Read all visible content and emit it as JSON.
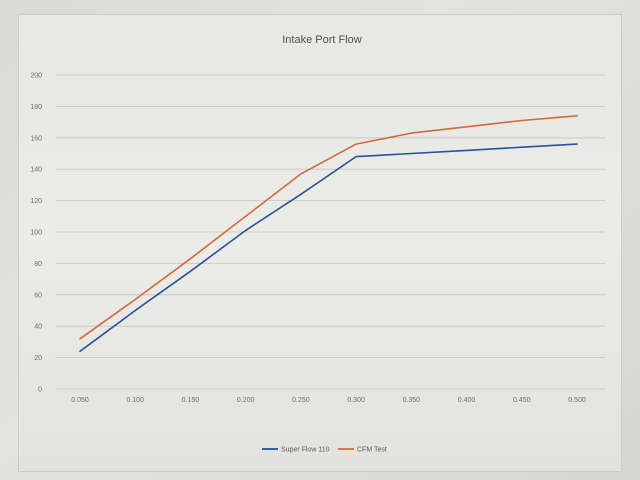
{
  "chart_data": {
    "type": "line",
    "title": "Intake Port Flow",
    "xlabel": "",
    "ylabel": "",
    "x": [
      "0.050",
      "0.100",
      "0.150",
      "0.200",
      "0.250",
      "0.300",
      "0.350",
      "0.400",
      "0.450",
      "0.500"
    ],
    "ylim": [
      0,
      200
    ],
    "yticks": [
      "0",
      "20",
      "40",
      "60",
      "80",
      "100",
      "120",
      "140",
      "160",
      "180",
      "200"
    ],
    "grid": true,
    "legend": "bottom",
    "series": [
      {
        "name": "Super Flow 110",
        "color": "#2c4f9e",
        "values": [
          24,
          50,
          75,
          101,
          124,
          148,
          150,
          152,
          154,
          156
        ]
      },
      {
        "name": "CFM Test",
        "color": "#d2693c",
        "values": [
          32,
          57,
          83,
          110,
          137,
          156,
          163,
          167,
          171,
          174
        ]
      }
    ]
  }
}
